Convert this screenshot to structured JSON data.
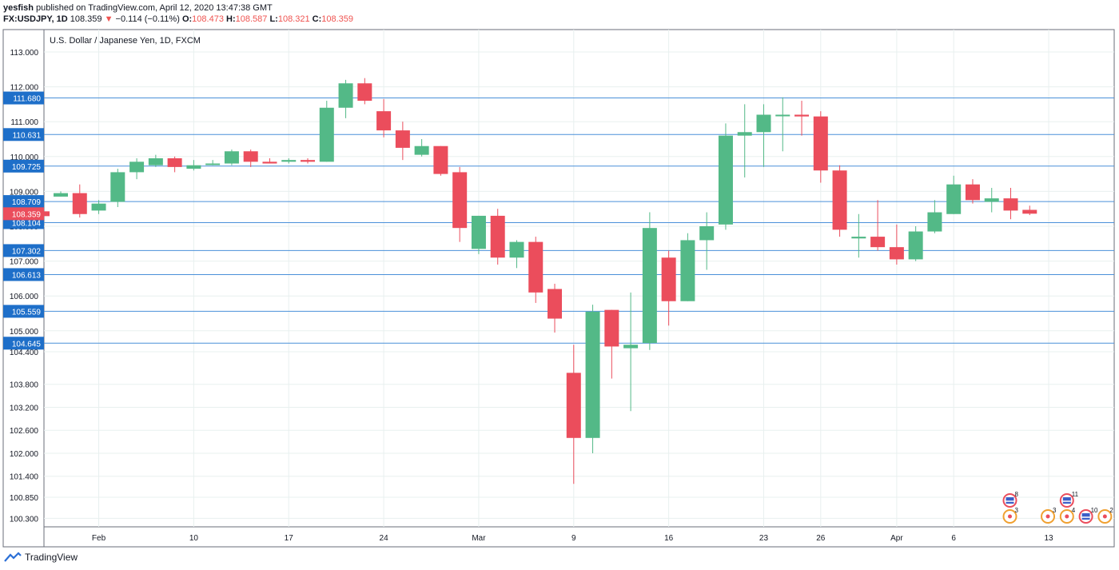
{
  "header": {
    "author": "yesfish",
    "published": "published on TradingView.com, April 12, 2020 13:47:38 GMT",
    "symbol": "FX:USDJPY, 1D",
    "last": "108.359",
    "change": "−0.114 (−0.11%)",
    "o_label": "O:",
    "o": "108.473",
    "h_label": "H:",
    "h": "108.587",
    "l_label": "L:",
    "l": "108.321",
    "c_label": "C:",
    "c": "108.359"
  },
  "footer": {
    "brand": "TradingView"
  },
  "colors": {
    "up": "#53b987",
    "down": "#eb4d5c",
    "level_line": "#4a90d9",
    "level_label": "#1e6fc9",
    "price_label": "#eb4d5c",
    "grid": "#e8f0ef"
  },
  "chart_data": {
    "type": "candlestick",
    "title": "U.S. Dollar / Japanese Yen, 1D, FXCM",
    "y_tick_labels": [
      "113.000",
      "112.000",
      "111.000",
      "110.000",
      "109.000",
      "108.000",
      "107.000",
      "106.000",
      "105.000",
      "104.400",
      "103.800",
      "103.200",
      "102.600",
      "102.000",
      "101.400",
      "100.850",
      "100.300"
    ],
    "x_tick_labels": [
      {
        "slot": 2,
        "label": "Feb"
      },
      {
        "slot": 7,
        "label": "10"
      },
      {
        "slot": 12,
        "label": "17"
      },
      {
        "slot": 17,
        "label": "24"
      },
      {
        "slot": 22,
        "label": "Mar"
      },
      {
        "slot": 27,
        "label": "9"
      },
      {
        "slot": 32,
        "label": "16"
      },
      {
        "slot": 37,
        "label": "23"
      },
      {
        "slot": 40,
        "label": "26"
      },
      {
        "slot": 44,
        "label": "Apr"
      },
      {
        "slot": 47,
        "label": "6"
      },
      {
        "slot": 52,
        "label": "13"
      }
    ],
    "horizontal_levels": [
      "111.680",
      "110.631",
      "109.725",
      "108.709",
      "108.104",
      "107.302",
      "106.613",
      "105.559",
      "104.645"
    ],
    "current_price": "108.359",
    "candles": [
      [
        0,
        108.85,
        109.0,
        108.85,
        108.95
      ],
      [
        1,
        108.95,
        109.2,
        108.25,
        108.35
      ],
      [
        2,
        108.45,
        108.75,
        108.35,
        108.65
      ],
      [
        3,
        108.7,
        109.65,
        108.55,
        109.55
      ],
      [
        4,
        109.55,
        109.95,
        109.35,
        109.85
      ],
      [
        5,
        109.75,
        110.05,
        109.7,
        109.95
      ],
      [
        6,
        109.95,
        110.0,
        109.55,
        109.7
      ],
      [
        7,
        109.65,
        109.9,
        109.6,
        109.75
      ],
      [
        8,
        109.8,
        109.9,
        109.75,
        109.8
      ],
      [
        9,
        109.8,
        110.2,
        109.75,
        110.15
      ],
      [
        10,
        110.15,
        110.2,
        109.7,
        109.85
      ],
      [
        11,
        109.85,
        109.95,
        109.8,
        109.8
      ],
      [
        12,
        109.85,
        109.95,
        109.8,
        109.9
      ],
      [
        13,
        109.9,
        109.95,
        109.8,
        109.85
      ],
      [
        14,
        109.85,
        111.6,
        109.85,
        111.4
      ],
      [
        15,
        111.4,
        112.2,
        111.1,
        112.1
      ],
      [
        16,
        112.1,
        112.25,
        111.5,
        111.6
      ],
      [
        17,
        111.3,
        111.65,
        110.55,
        110.75
      ],
      [
        18,
        110.75,
        111.0,
        109.9,
        110.25
      ],
      [
        19,
        110.05,
        110.5,
        110.0,
        110.3
      ],
      [
        20,
        110.3,
        110.3,
        109.45,
        109.5
      ],
      [
        21,
        109.55,
        109.7,
        107.55,
        107.95
      ],
      [
        22,
        107.35,
        108.3,
        107.2,
        108.3
      ],
      [
        23,
        108.3,
        108.5,
        106.9,
        107.1
      ],
      [
        24,
        107.1,
        107.6,
        106.8,
        107.55
      ],
      [
        25,
        107.55,
        107.7,
        105.8,
        106.1
      ],
      [
        26,
        106.2,
        106.35,
        104.95,
        105.35
      ],
      [
        27,
        104.1,
        104.6,
        101.2,
        102.4
      ],
      [
        28,
        102.4,
        105.75,
        102.0,
        105.55
      ],
      [
        29,
        105.6,
        105.6,
        103.95,
        104.55
      ],
      [
        30,
        104.5,
        106.1,
        103.1,
        104.6
      ],
      [
        31,
        104.65,
        108.4,
        104.45,
        107.95
      ],
      [
        32,
        107.1,
        107.3,
        105.15,
        105.85
      ],
      [
        33,
        105.85,
        107.8,
        105.85,
        107.6
      ],
      [
        34,
        107.6,
        108.4,
        106.75,
        108.0
      ],
      [
        35,
        108.05,
        110.95,
        107.9,
        110.6
      ],
      [
        36,
        110.6,
        111.5,
        109.4,
        110.7
      ],
      [
        37,
        110.7,
        111.5,
        109.7,
        111.2
      ],
      [
        38,
        111.2,
        111.7,
        110.15,
        111.2
      ],
      [
        39,
        111.2,
        111.6,
        110.6,
        111.15
      ],
      [
        40,
        111.15,
        111.3,
        109.25,
        109.6
      ],
      [
        41,
        109.6,
        109.75,
        107.7,
        107.9
      ],
      [
        42,
        107.65,
        108.35,
        107.1,
        107.7
      ],
      [
        43,
        107.7,
        108.75,
        107.3,
        107.4
      ],
      [
        44,
        107.4,
        108.05,
        106.9,
        107.05
      ],
      [
        45,
        107.05,
        108.0,
        107.0,
        107.85
      ],
      [
        46,
        107.85,
        108.75,
        107.8,
        108.4
      ],
      [
        47,
        108.35,
        109.45,
        108.35,
        109.2
      ],
      [
        48,
        109.2,
        109.35,
        108.65,
        108.75
      ],
      [
        49,
        108.7,
        109.1,
        108.4,
        108.8
      ],
      [
        50,
        108.8,
        109.1,
        108.2,
        108.45
      ],
      [
        51,
        108.47,
        108.59,
        108.32,
        108.36
      ]
    ],
    "event_markers": [
      {
        "slot": 50,
        "row": "upper",
        "kind": "us-flag",
        "count": "8"
      },
      {
        "slot": 50,
        "row": "lower",
        "kind": "dot",
        "count": "3"
      },
      {
        "slot": 52,
        "row": "lower",
        "kind": "dot",
        "count": "3"
      },
      {
        "slot": 53,
        "row": "upper",
        "kind": "us-flag",
        "count": "11"
      },
      {
        "slot": 53,
        "row": "lower",
        "kind": "dot",
        "count": "4"
      },
      {
        "slot": 54,
        "row": "lower",
        "kind": "us-flag",
        "count": "10"
      },
      {
        "slot": 55,
        "row": "lower",
        "kind": "dot",
        "count": "2"
      }
    ]
  }
}
